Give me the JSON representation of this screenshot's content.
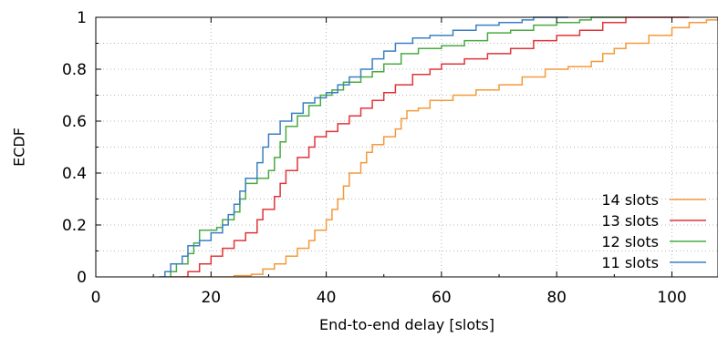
{
  "chart_data": {
    "type": "line",
    "step": true,
    "xlabel": "End-to-end delay [slots]",
    "ylabel": "ECDF",
    "xlim": [
      0,
      108
    ],
    "ylim": [
      0,
      1
    ],
    "xticks": [
      "0",
      "20",
      "40",
      "60",
      "80",
      "100"
    ],
    "yticks": [
      "0",
      "0.2",
      "0.4",
      "0.6",
      "0.8",
      "1"
    ],
    "grid": true,
    "legend": "bottom-right",
    "series": [
      {
        "name": "14 slots",
        "color": "#f39a3b",
        "points": [
          [
            15,
            0
          ],
          [
            20,
            0
          ],
          [
            24,
            0.005
          ],
          [
            27,
            0.01
          ],
          [
            29,
            0.03
          ],
          [
            31,
            0.05
          ],
          [
            33,
            0.08
          ],
          [
            35,
            0.11
          ],
          [
            37,
            0.14
          ],
          [
            38,
            0.18
          ],
          [
            40,
            0.22
          ],
          [
            41,
            0.26
          ],
          [
            42,
            0.3
          ],
          [
            43,
            0.35
          ],
          [
            44,
            0.4
          ],
          [
            46,
            0.44
          ],
          [
            47,
            0.48
          ],
          [
            48,
            0.51
          ],
          [
            50,
            0.54
          ],
          [
            52,
            0.57
          ],
          [
            53,
            0.61
          ],
          [
            54,
            0.64
          ],
          [
            56,
            0.65
          ],
          [
            58,
            0.68
          ],
          [
            62,
            0.7
          ],
          [
            66,
            0.72
          ],
          [
            70,
            0.74
          ],
          [
            74,
            0.77
          ],
          [
            78,
            0.8
          ],
          [
            82,
            0.81
          ],
          [
            86,
            0.83
          ],
          [
            88,
            0.86
          ],
          [
            90,
            0.88
          ],
          [
            92,
            0.9
          ],
          [
            96,
            0.93
          ],
          [
            100,
            0.96
          ],
          [
            103,
            0.98
          ],
          [
            106,
            0.99
          ],
          [
            108,
            1.0
          ]
        ]
      },
      {
        "name": "13 slots",
        "color": "#e0353a",
        "points": [
          [
            13,
            0
          ],
          [
            15,
            0
          ],
          [
            16,
            0.02
          ],
          [
            18,
            0.05
          ],
          [
            20,
            0.08
          ],
          [
            22,
            0.11
          ],
          [
            24,
            0.14
          ],
          [
            26,
            0.17
          ],
          [
            28,
            0.22
          ],
          [
            29,
            0.26
          ],
          [
            31,
            0.31
          ],
          [
            32,
            0.36
          ],
          [
            33,
            0.41
          ],
          [
            35,
            0.46
          ],
          [
            37,
            0.5
          ],
          [
            38,
            0.54
          ],
          [
            40,
            0.56
          ],
          [
            42,
            0.59
          ],
          [
            44,
            0.62
          ],
          [
            46,
            0.65
          ],
          [
            48,
            0.68
          ],
          [
            50,
            0.71
          ],
          [
            52,
            0.74
          ],
          [
            55,
            0.78
          ],
          [
            58,
            0.8
          ],
          [
            60,
            0.82
          ],
          [
            64,
            0.84
          ],
          [
            68,
            0.86
          ],
          [
            72,
            0.88
          ],
          [
            76,
            0.91
          ],
          [
            80,
            0.93
          ],
          [
            84,
            0.95
          ],
          [
            88,
            0.98
          ],
          [
            92,
            1.0
          ],
          [
            103,
            1.0
          ]
        ]
      },
      {
        "name": "12 slots",
        "color": "#49ab42",
        "points": [
          [
            11,
            0
          ],
          [
            12,
            0
          ],
          [
            13,
            0.02
          ],
          [
            14,
            0.05
          ],
          [
            16,
            0.09
          ],
          [
            17,
            0.13
          ],
          [
            18,
            0.18
          ],
          [
            21,
            0.19
          ],
          [
            22,
            0.22
          ],
          [
            24,
            0.25
          ],
          [
            25,
            0.3
          ],
          [
            26,
            0.36
          ],
          [
            28,
            0.38
          ],
          [
            30,
            0.41
          ],
          [
            31,
            0.46
          ],
          [
            32,
            0.52
          ],
          [
            33,
            0.58
          ],
          [
            35,
            0.62
          ],
          [
            37,
            0.66
          ],
          [
            39,
            0.7
          ],
          [
            41,
            0.72
          ],
          [
            43,
            0.75
          ],
          [
            46,
            0.77
          ],
          [
            48,
            0.79
          ],
          [
            50,
            0.82
          ],
          [
            53,
            0.86
          ],
          [
            56,
            0.88
          ],
          [
            60,
            0.89
          ],
          [
            64,
            0.91
          ],
          [
            68,
            0.94
          ],
          [
            72,
            0.95
          ],
          [
            76,
            0.97
          ],
          [
            80,
            0.98
          ],
          [
            84,
            0.99
          ],
          [
            86,
            1.0
          ],
          [
            92,
            1.0
          ]
        ]
      },
      {
        "name": "11 slots",
        "color": "#3b80c4",
        "points": [
          [
            11,
            0
          ],
          [
            12,
            0.02
          ],
          [
            13,
            0.05
          ],
          [
            15,
            0.08
          ],
          [
            16,
            0.12
          ],
          [
            18,
            0.14
          ],
          [
            20,
            0.17
          ],
          [
            22,
            0.2
          ],
          [
            23,
            0.24
          ],
          [
            24,
            0.28
          ],
          [
            25,
            0.33
          ],
          [
            26,
            0.38
          ],
          [
            28,
            0.44
          ],
          [
            29,
            0.5
          ],
          [
            30,
            0.55
          ],
          [
            32,
            0.6
          ],
          [
            34,
            0.63
          ],
          [
            36,
            0.67
          ],
          [
            38,
            0.69
          ],
          [
            40,
            0.71
          ],
          [
            42,
            0.74
          ],
          [
            44,
            0.77
          ],
          [
            46,
            0.8
          ],
          [
            48,
            0.84
          ],
          [
            50,
            0.87
          ],
          [
            52,
            0.9
          ],
          [
            55,
            0.92
          ],
          [
            58,
            0.93
          ],
          [
            62,
            0.95
          ],
          [
            66,
            0.97
          ],
          [
            70,
            0.98
          ],
          [
            74,
            0.99
          ],
          [
            76,
            1.0
          ],
          [
            82,
            1.0
          ]
        ]
      }
    ]
  }
}
